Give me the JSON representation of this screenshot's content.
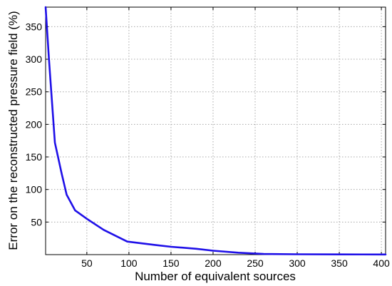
{
  "chart_data": {
    "type": "line",
    "title": "",
    "xlabel": "Number of equivalent sources",
    "ylabel": "Error on the reconstructed pressure field (%)",
    "xlim": [
      1,
      405
    ],
    "ylim": [
      0,
      380
    ],
    "xticks": [
      50,
      100,
      150,
      200,
      250,
      300,
      350,
      400
    ],
    "yticks": [
      50,
      100,
      150,
      200,
      250,
      300,
      350
    ],
    "grid": true,
    "series": [
      {
        "color": "#1f10e8",
        "x": [
          1,
          5,
          12,
          20,
          26,
          36,
          50,
          70,
          98,
          130,
          150,
          180,
          200,
          230,
          260,
          300,
          350,
          405
        ],
        "y": [
          380,
          300,
          172,
          125,
          92,
          68,
          55,
          38,
          20,
          15,
          12,
          9,
          6,
          3,
          1,
          0.5,
          0.3,
          0.2
        ]
      }
    ]
  }
}
